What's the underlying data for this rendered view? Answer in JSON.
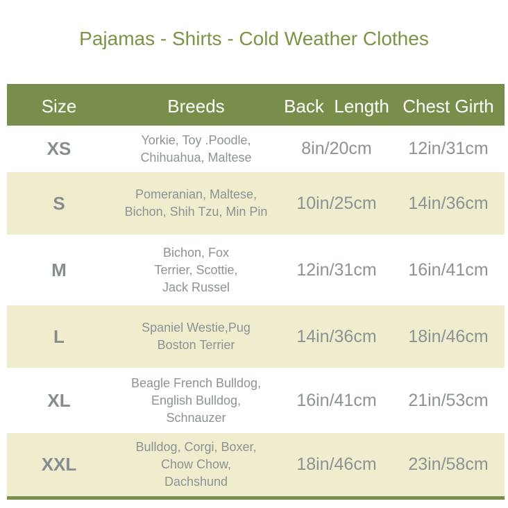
{
  "title": "Pajamas - Shirts - Cold Weather Clothes",
  "headers": [
    "Size",
    "Breeds",
    "Back  Length",
    "Chest Girth"
  ],
  "colors": {
    "header": "#7a8e4c",
    "stripe": "#efedcd",
    "title": "#7a9444",
    "text": "#8b9394"
  },
  "rows": [
    {
      "size": "XS",
      "breeds": [
        "Yorkie, Toy .Poodle,",
        "Chihuahua, Maltese"
      ],
      "back": "8in/20cm",
      "chest": "12in/31cm"
    },
    {
      "size": "S",
      "breeds": [
        "Pomeranian, Maltese,",
        "Bichon, Shih Tzu, Min Pin"
      ],
      "back": "10in/25cm",
      "chest": "14in/36cm"
    },
    {
      "size": "M",
      "breeds": [
        "Bichon, Fox",
        "Terrier, Scottie,",
        "Jack Russel"
      ],
      "back": "12in/31cm",
      "chest": "16in/41cm"
    },
    {
      "size": "L",
      "breeds": [
        "Spaniel Westie,Pug",
        "Boston Terrier"
      ],
      "back": "14in/36cm",
      "chest": "18in/46cm"
    },
    {
      "size": "XL",
      "breeds": [
        "Beagle French Bulldog,",
        "English Bulldog,",
        "Schnauzer"
      ],
      "back": "16in/41cm",
      "chest": "21in/53cm"
    },
    {
      "size": "XXL",
      "breeds": [
        "Bulldog, Corgi, Boxer,",
        "Chow Chow,",
        "Dachshund"
      ],
      "back": "18in/46cm",
      "chest": "23in/58cm"
    }
  ]
}
